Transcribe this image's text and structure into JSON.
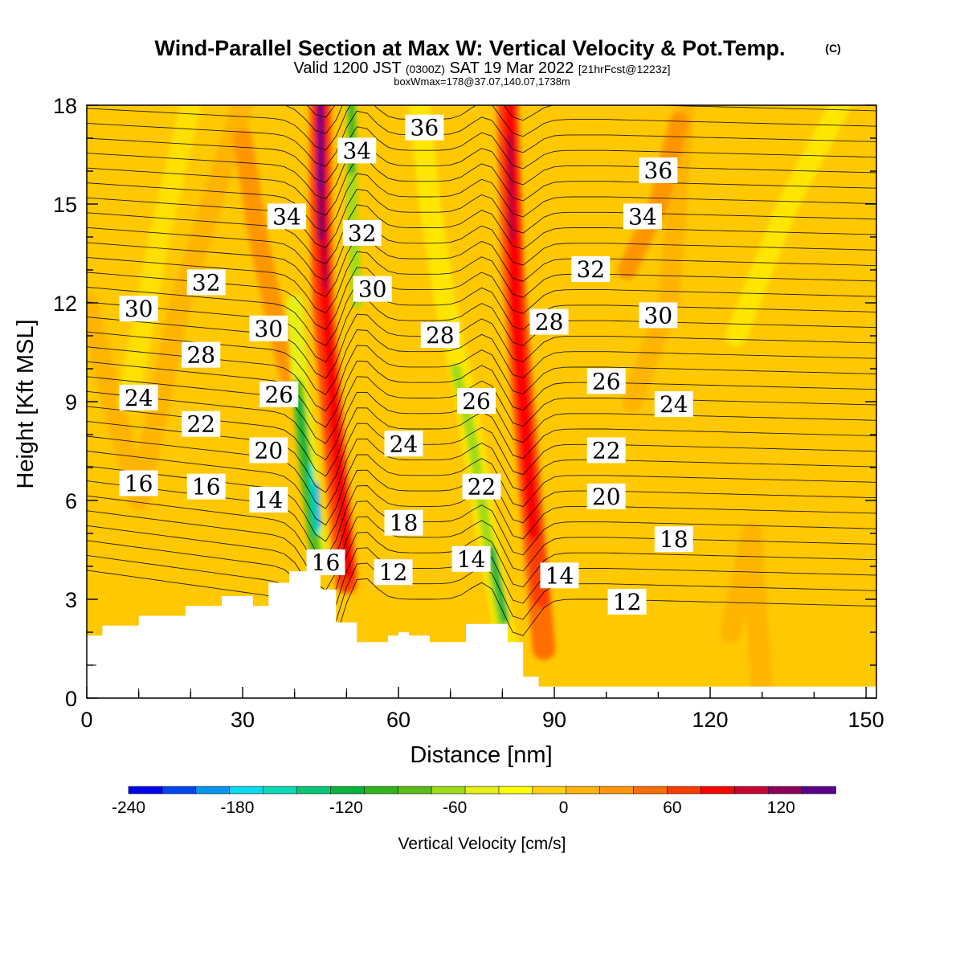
{
  "title": "Wind-Parallel Section at Max W: Vertical Velocity & Pot.Temp.",
  "copyright_mark": "(C)",
  "subtitle": {
    "valid": "Valid 1200 JST",
    "utc": "(0300Z)",
    "date": "SAT 19 Mar 2022",
    "forecast": "[21hrFcst@1223z]"
  },
  "box_note": "boxWmax=178@37.07,140.07,1738m",
  "chart_data": {
    "type": "heatmap",
    "xlabel": "Distance [nm]",
    "ylabel": "Height [Kft MSL]",
    "xlim": [
      0,
      152
    ],
    "ylim": [
      0,
      18
    ],
    "x_ticks": [
      "0",
      "30",
      "60",
      "90",
      "120",
      "150"
    ],
    "y_ticks": [
      "0",
      "3",
      "6",
      "9",
      "12",
      "15",
      "18"
    ],
    "x_tick_values": [
      0,
      30,
      60,
      90,
      120,
      150
    ],
    "y_tick_values": [
      0,
      3,
      6,
      9,
      12,
      15,
      18
    ],
    "fill_variable": "Vertical Velocity [cm/s]",
    "colorbar": {
      "label": "Vertical Velocity [cm/s]",
      "min": -240,
      "max": 150,
      "step": 20,
      "tick_labels": [
        "-240",
        "-180",
        "-120",
        "-60",
        "0",
        "60",
        "120"
      ],
      "tick_values": [
        -240,
        -180,
        -120,
        -60,
        0,
        60,
        120
      ],
      "colors": [
        "#0000f0",
        "#0046f0",
        "#0096f0",
        "#00dcf0",
        "#00dcb4",
        "#00c878",
        "#00b43c",
        "#32b41e",
        "#5abe14",
        "#a0dc14",
        "#e6f014",
        "#ffff00",
        "#ffd200",
        "#ffb400",
        "#ff9600",
        "#ff6e00",
        "#ff3c00",
        "#ff0000",
        "#c80032",
        "#8c005a",
        "#5a008c"
      ]
    },
    "contour_variable": "Potential temperature",
    "contour_labels": [
      {
        "text": "36",
        "x": 65,
        "y": 17.3
      },
      {
        "text": "36",
        "x": 110,
        "y": 16.0
      },
      {
        "text": "34",
        "x": 52,
        "y": 16.6
      },
      {
        "text": "34",
        "x": 38.5,
        "y": 14.6
      },
      {
        "text": "34",
        "x": 107,
        "y": 14.6
      },
      {
        "text": "32",
        "x": 53,
        "y": 14.1
      },
      {
        "text": "32",
        "x": 23,
        "y": 12.6
      },
      {
        "text": "32",
        "x": 97,
        "y": 13.0
      },
      {
        "text": "30",
        "x": 55,
        "y": 12.4
      },
      {
        "text": "30",
        "x": 10,
        "y": 11.8
      },
      {
        "text": "30",
        "x": 35,
        "y": 11.2
      },
      {
        "text": "30",
        "x": 110,
        "y": 11.6
      },
      {
        "text": "28",
        "x": 68,
        "y": 11.0
      },
      {
        "text": "28",
        "x": 89,
        "y": 11.4
      },
      {
        "text": "28",
        "x": 22,
        "y": 10.4
      },
      {
        "text": "26",
        "x": 37,
        "y": 9.2
      },
      {
        "text": "26",
        "x": 75,
        "y": 9.0
      },
      {
        "text": "26",
        "x": 100,
        "y": 9.6
      },
      {
        "text": "24",
        "x": 10,
        "y": 9.1
      },
      {
        "text": "24",
        "x": 61,
        "y": 7.7
      },
      {
        "text": "24",
        "x": 113,
        "y": 8.9
      },
      {
        "text": "22",
        "x": 22,
        "y": 8.3
      },
      {
        "text": "22",
        "x": 76,
        "y": 6.4
      },
      {
        "text": "22",
        "x": 100,
        "y": 7.5
      },
      {
        "text": "20",
        "x": 35,
        "y": 7.5
      },
      {
        "text": "20",
        "x": 100,
        "y": 6.1
      },
      {
        "text": "16",
        "x": 10,
        "y": 6.5
      },
      {
        "text": "16",
        "x": 23,
        "y": 6.4
      },
      {
        "text": "16",
        "x": 46,
        "y": 4.1
      },
      {
        "text": "14",
        "x": 35,
        "y": 6.0
      },
      {
        "text": "14",
        "x": 74,
        "y": 4.2
      },
      {
        "text": "14",
        "x": 91,
        "y": 3.7
      },
      {
        "text": "18",
        "x": 61,
        "y": 5.3
      },
      {
        "text": "18",
        "x": 113,
        "y": 4.8
      },
      {
        "text": "12",
        "x": 59,
        "y": 3.8
      },
      {
        "text": "12",
        "x": 104,
        "y": 2.9
      }
    ]
  }
}
